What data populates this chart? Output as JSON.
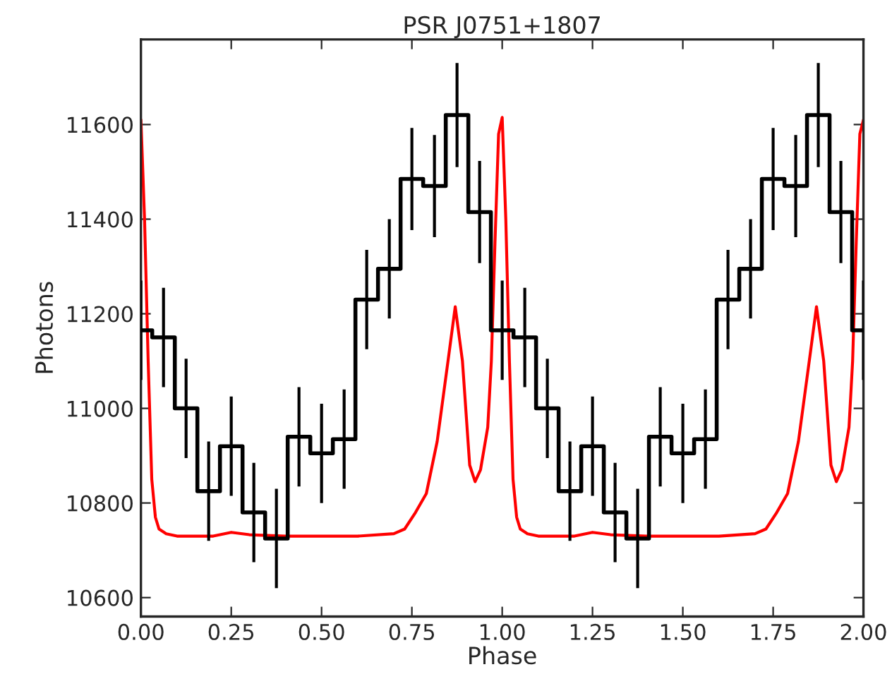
{
  "chart_data": {
    "type": "step",
    "title": "PSR J0751+1807",
    "xlabel": "Phase",
    "ylabel": "Photons",
    "xlim": [
      0,
      2
    ],
    "xticks": [
      {
        "value": 0,
        "label": "0.00"
      },
      {
        "value": 0.25,
        "label": "0.25"
      },
      {
        "value": 0.5,
        "label": "0.50"
      },
      {
        "value": 0.75,
        "label": "0.75"
      },
      {
        "value": 1,
        "label": "1.00"
      },
      {
        "value": 1.25,
        "label": "1.25"
      },
      {
        "value": 1.5,
        "label": "1.50"
      },
      {
        "value": 1.75,
        "label": "1.75"
      },
      {
        "value": 2,
        "label": "2.00"
      }
    ],
    "ylim": [
      10560,
      11780
    ],
    "yticks": [
      10600,
      10800,
      11000,
      11200,
      11400,
      11600
    ],
    "grid": false,
    "series": [
      {
        "color": "#000000",
        "x": [
          0,
          0.0625,
          0.125,
          0.1875,
          0.25,
          0.3125,
          0.375,
          0.4375,
          0.5,
          0.5625,
          0.625,
          0.6875,
          0.75,
          0.8125,
          0.875,
          0.9375,
          1,
          1.0625,
          1.125,
          1.1875,
          1.25,
          1.3125,
          1.375,
          1.4375,
          1.5,
          1.5625,
          1.625,
          1.6875,
          1.75,
          1.8125,
          1.875,
          1.9375,
          2
        ],
        "values": [
          11165,
          11150,
          11000,
          10825,
          10920,
          10780,
          10725,
          10940,
          10905,
          10935,
          11230,
          11295,
          11485,
          11470,
          11620,
          11415,
          11165,
          11150,
          11000,
          10825,
          10920,
          10780,
          10725,
          10940,
          10905,
          10935,
          11230,
          11295,
          11485,
          11470,
          11620,
          11415,
          11165
        ],
        "errors": [
          105,
          105,
          105,
          105,
          105,
          105,
          105,
          105,
          105,
          105,
          105,
          105,
          108,
          108,
          110,
          108,
          105,
          105,
          105,
          105,
          105,
          105,
          105,
          105,
          105,
          105,
          105,
          105,
          108,
          108,
          110,
          108,
          105
        ]
      },
      {
        "type": "line",
        "color": "#ff0000",
        "x": [
          0,
          0.01,
          0.02,
          0.03,
          0.04,
          0.05,
          0.07,
          0.1,
          0.2,
          0.25,
          0.3,
          0.4,
          0.5,
          0.6,
          0.7,
          0.73,
          0.76,
          0.79,
          0.82,
          0.85,
          0.87,
          0.89,
          0.91,
          0.925,
          0.94,
          0.96,
          0.97,
          0.98,
          0.99,
          1,
          1.01,
          1.02,
          1.03,
          1.04,
          1.05,
          1.07,
          1.1,
          1.2,
          1.25,
          1.3,
          1.4,
          1.5,
          1.6,
          1.7,
          1.73,
          1.76,
          1.79,
          1.82,
          1.85,
          1.87,
          1.89,
          1.91,
          1.925,
          1.94,
          1.96,
          1.97,
          1.98,
          1.99,
          2
        ],
        "values": [
          11610,
          11400,
          11100,
          10850,
          10770,
          10745,
          10735,
          10730,
          10730,
          10738,
          10733,
          10730,
          10730,
          10730,
          10735,
          10745,
          10780,
          10820,
          10930,
          11100,
          11215,
          11100,
          10880,
          10845,
          10870,
          10960,
          11100,
          11350,
          11580,
          11615,
          11400,
          11100,
          10850,
          10770,
          10745,
          10735,
          10730,
          10730,
          10738,
          10733,
          10730,
          10730,
          10730,
          10735,
          10745,
          10780,
          10820,
          10930,
          11100,
          11215,
          11100,
          10880,
          10845,
          10870,
          10960,
          11100,
          11350,
          11580,
          11610
        ]
      }
    ]
  }
}
